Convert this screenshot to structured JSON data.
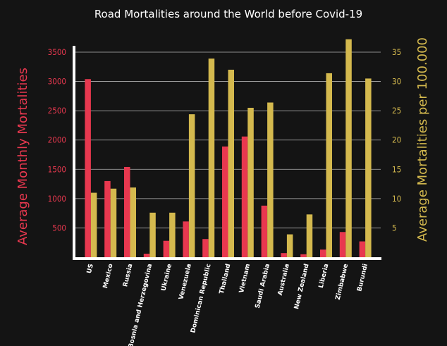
{
  "chart_data": {
    "type": "bar",
    "title": "Road Mortalities around the World before Covid-19",
    "categories": [
      "US",
      "Mexico",
      "Russia",
      "Bosnia and Herzegovina",
      "Ukraine",
      "Venezuela",
      "Dominican Republic",
      "Thailand",
      "Vietnam",
      "Saudi Arabia",
      "Australia",
      "New Zealand",
      "Liberia",
      "Zimbabwe",
      "Burundi"
    ],
    "series": [
      {
        "name": "Average Monthly Mortalities",
        "axis": "left",
        "color": "#e8384f",
        "values": [
          3040,
          1300,
          1540,
          60,
          280,
          610,
          310,
          1890,
          2060,
          880,
          70,
          50,
          130,
          430,
          270
        ]
      },
      {
        "name": "Average Mortalities per 100.000",
        "axis": "right",
        "color": "#d4b94e",
        "values": [
          11.0,
          11.7,
          11.9,
          7.6,
          7.6,
          24.4,
          33.9,
          32.0,
          25.5,
          26.4,
          3.9,
          7.3,
          31.4,
          37.2,
          30.5
        ]
      }
    ],
    "ylabel_left": "Average Monthly Mortalities",
    "ylabel_right": "Average Mortalities per 100.000",
    "ylim_left": [
      0,
      3500
    ],
    "ylim_right": [
      0,
      35
    ],
    "yticks_left": [
      500,
      1000,
      1500,
      2000,
      2500,
      3000,
      3500
    ],
    "yticks_right": [
      5,
      10,
      15,
      20,
      25,
      30,
      35
    ],
    "grid": true,
    "colors": {
      "background": "#141414",
      "left_axis": "#e8384f",
      "right_axis": "#d4b94e",
      "grid": "#b5b5b5",
      "text": "#ffffff"
    }
  }
}
